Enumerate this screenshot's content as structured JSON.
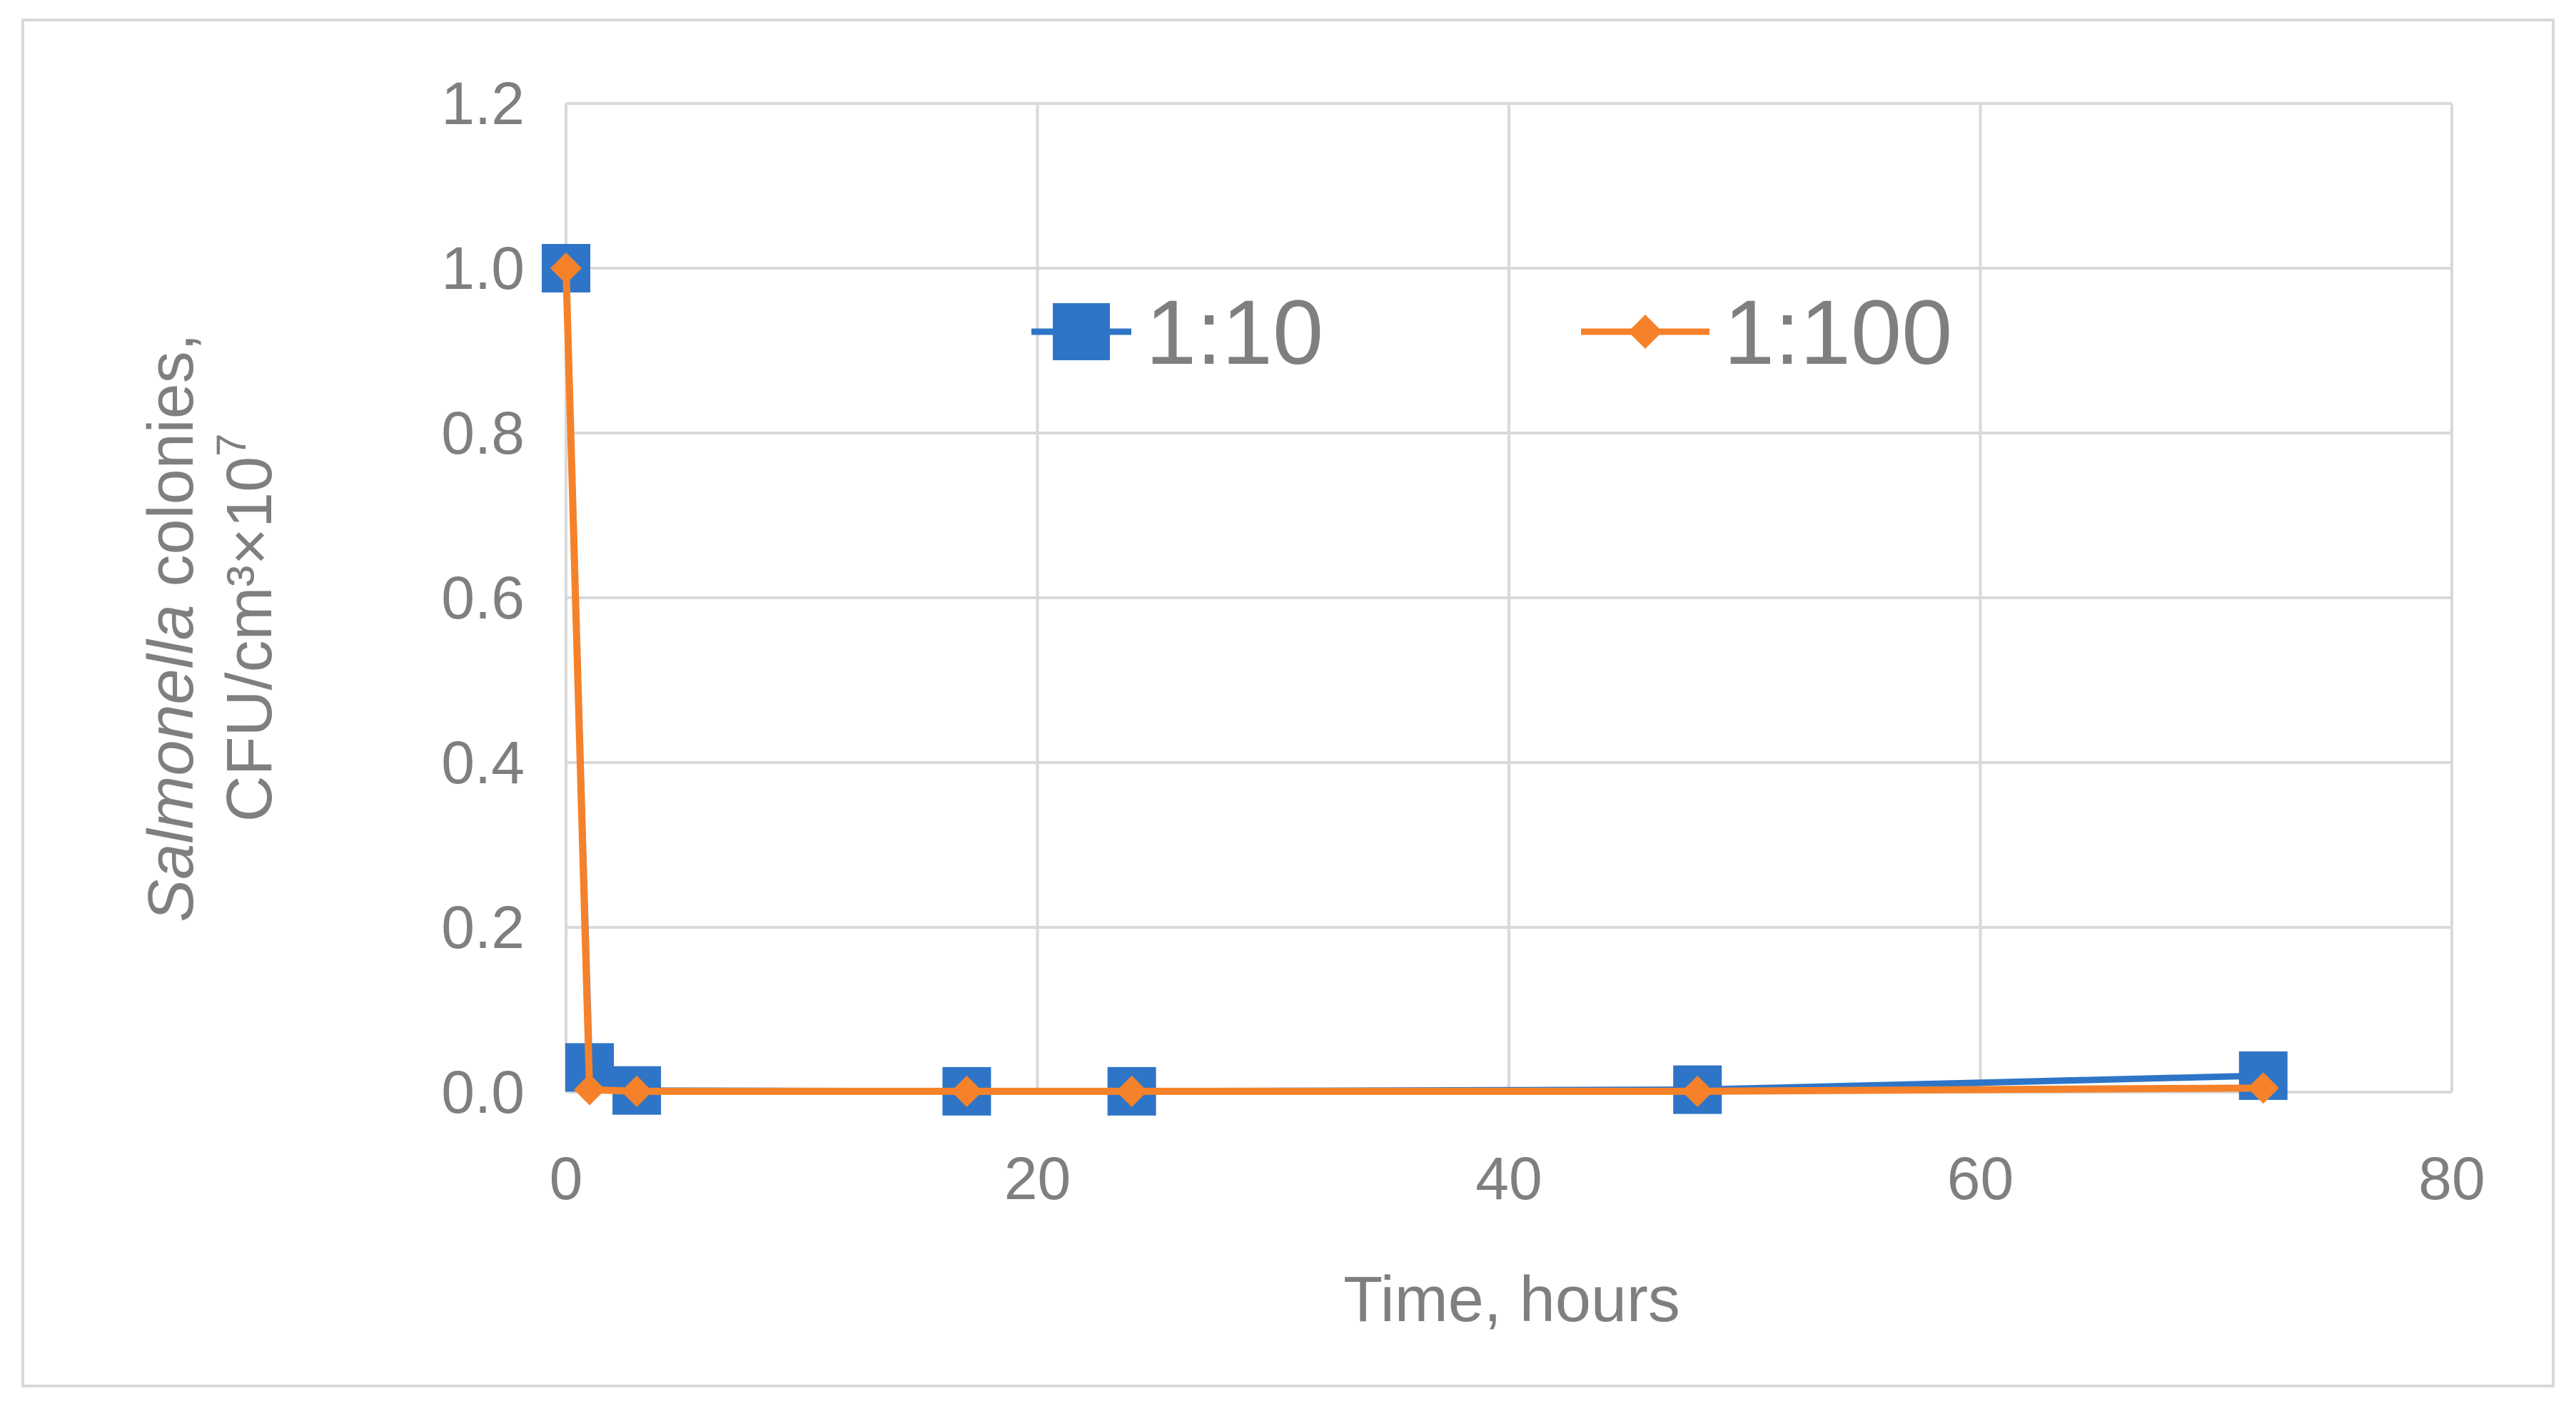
{
  "chart_data": {
    "type": "line",
    "title": "",
    "xlabel": "Time, hours",
    "ylabel": {
      "line1_italic": "Salmonella",
      "line1_rest": " colonies,",
      "line2": "CFU/cm³×10",
      "line2_superscript": "7"
    },
    "xlim": [
      0,
      80
    ],
    "ylim": [
      0,
      1.2
    ],
    "x_ticks": [
      "0",
      "20",
      "40",
      "60",
      "80"
    ],
    "y_ticks": [
      "0.0",
      "0.2",
      "0.4",
      "0.6",
      "0.8",
      "1.0",
      "1.2"
    ],
    "grid": true,
    "legend_position": "top-center",
    "series": [
      {
        "name": "1:10",
        "color": "#2e75c7",
        "marker": "square",
        "x": [
          0,
          1,
          3,
          17,
          24,
          48,
          72
        ],
        "y": [
          1.0,
          0.03,
          0.002,
          0.001,
          0.001,
          0.003,
          0.02
        ]
      },
      {
        "name": "1:100",
        "color": "#f5822a",
        "marker": "diamond",
        "x": [
          0,
          1,
          3,
          17,
          24,
          48,
          72
        ],
        "y": [
          1.0,
          0.003,
          0.001,
          0.001,
          0.001,
          0.001,
          0.005
        ]
      }
    ]
  }
}
